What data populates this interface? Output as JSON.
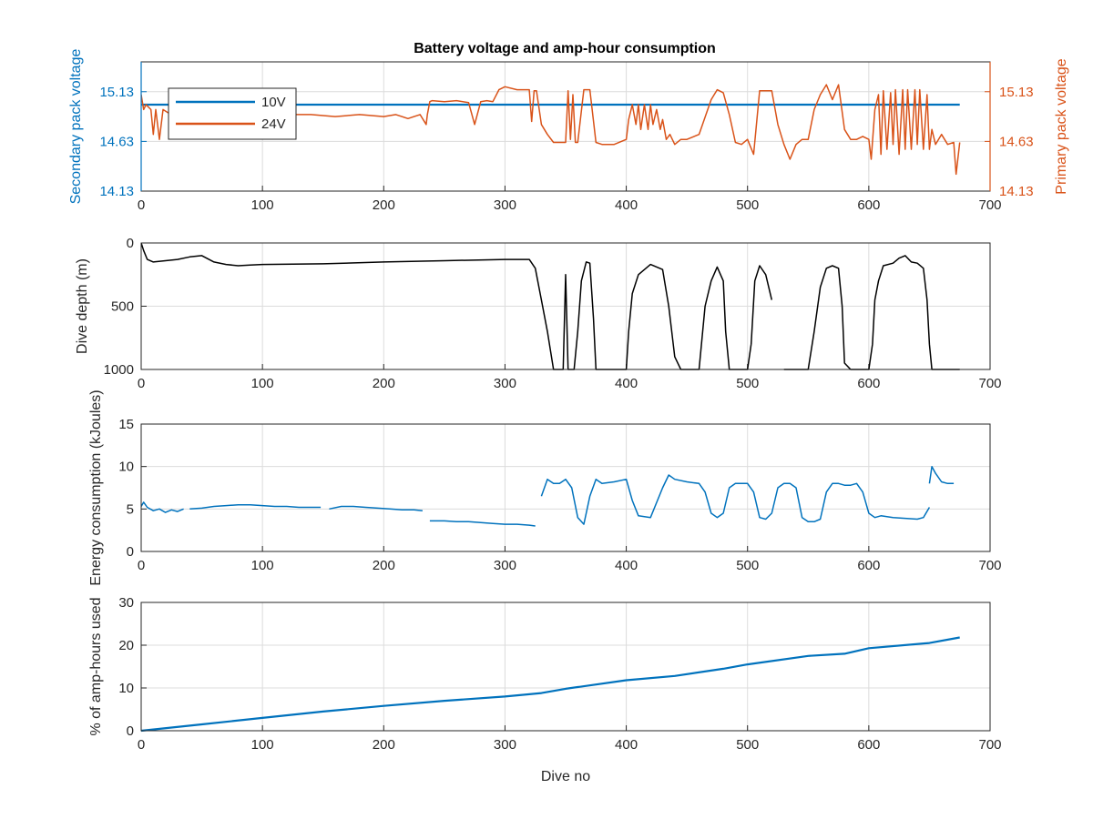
{
  "title": "Battery voltage and amp-hour consumption",
  "colors": {
    "blue": "#0072BD",
    "orange": "#D95319",
    "black": "#000000",
    "grid": "#dcdcdc"
  },
  "chart_data": [
    {
      "type": "line",
      "title": "Battery voltage and amp-hour consumption",
      "xlabel": "",
      "ylabel_left": "Secondary pack voltage",
      "ylabel_right": "Primary pack voltage",
      "xlim": [
        0,
        700
      ],
      "ylim": [
        14.13,
        15.43
      ],
      "xticks": [
        "0",
        "100",
        "200",
        "300",
        "400",
        "500",
        "600",
        "700"
      ],
      "yticks_left": [
        "14.13",
        "14.63",
        "15.13"
      ],
      "yticks_right": [
        "14.13",
        "14.63",
        "15.13"
      ],
      "legend": {
        "position": "top-left",
        "entries": [
          "10V",
          "24V"
        ]
      },
      "grid": true,
      "series": [
        {
          "name": "10V",
          "axis": "left",
          "color": "#0072BD",
          "x": [
            0,
            675
          ],
          "y": [
            15.0,
            15.0
          ]
        },
        {
          "name": "24V",
          "axis": "right",
          "color": "#D95319",
          "x": [
            0,
            2,
            4,
            8,
            10,
            12,
            15,
            18,
            22,
            25,
            30,
            40,
            50,
            60,
            80,
            100,
            120,
            140,
            160,
            180,
            200,
            210,
            220,
            230,
            235,
            236,
            238,
            240,
            250,
            260,
            270,
            275,
            280,
            285,
            290,
            295,
            300,
            310,
            320,
            322,
            324,
            326,
            330,
            335,
            340,
            345,
            350,
            352,
            354,
            356,
            358,
            360,
            365,
            370,
            375,
            380,
            390,
            400,
            402,
            405,
            408,
            410,
            412,
            415,
            418,
            420,
            422,
            425,
            428,
            430,
            433,
            436,
            440,
            445,
            450,
            460,
            470,
            475,
            480,
            485,
            490,
            495,
            500,
            505,
            510,
            515,
            520,
            525,
            530,
            535,
            540,
            545,
            550,
            555,
            560,
            565,
            570,
            575,
            580,
            585,
            590,
            595,
            600,
            602,
            605,
            608,
            610,
            612,
            615,
            618,
            620,
            622,
            625,
            628,
            630,
            632,
            635,
            638,
            640,
            642,
            645,
            648,
            650,
            652,
            655,
            660,
            665,
            670,
            672,
            675
          ],
          "y": [
            15.1,
            14.95,
            15.0,
            14.95,
            14.7,
            14.95,
            14.65,
            14.95,
            14.92,
            14.9,
            14.9,
            14.9,
            14.88,
            14.9,
            14.9,
            14.88,
            14.9,
            14.9,
            14.88,
            14.9,
            14.88,
            14.9,
            14.86,
            14.9,
            14.8,
            14.9,
            15.03,
            15.04,
            15.03,
            15.04,
            15.02,
            14.8,
            15.03,
            15.04,
            15.03,
            15.15,
            15.18,
            15.15,
            15.15,
            14.83,
            15.14,
            15.14,
            14.8,
            14.7,
            14.62,
            14.62,
            14.62,
            15.14,
            14.65,
            15.1,
            14.62,
            14.62,
            15.15,
            15.15,
            14.62,
            14.6,
            14.6,
            14.65,
            14.85,
            15.0,
            14.8,
            15.0,
            14.75,
            15.0,
            14.75,
            15.0,
            14.8,
            14.95,
            14.75,
            14.85,
            14.65,
            14.7,
            14.6,
            14.65,
            14.65,
            14.7,
            15.05,
            15.15,
            15.12,
            14.9,
            14.62,
            14.6,
            14.65,
            14.5,
            15.14,
            15.14,
            15.14,
            14.8,
            14.6,
            14.45,
            14.6,
            14.65,
            14.65,
            14.95,
            15.1,
            15.2,
            15.05,
            15.2,
            14.75,
            14.65,
            14.65,
            14.68,
            14.65,
            14.45,
            14.95,
            15.1,
            14.5,
            15.14,
            14.55,
            15.12,
            14.6,
            15.15,
            14.5,
            15.15,
            14.55,
            15.15,
            14.55,
            15.15,
            14.6,
            15.15,
            14.55,
            15.1,
            14.55,
            14.75,
            14.6,
            14.7,
            14.6,
            14.62,
            14.3,
            14.62
          ]
        }
      ]
    },
    {
      "type": "line",
      "xlabel": "",
      "ylabel": "Dive depth (m)",
      "xlim": [
        0,
        700
      ],
      "ylim": [
        0,
        1000
      ],
      "y_reversed": true,
      "xticks": [
        "0",
        "100",
        "200",
        "300",
        "400",
        "500",
        "600",
        "700"
      ],
      "yticks": [
        "0",
        "500",
        "1000"
      ],
      "grid": true,
      "series": [
        {
          "segments": [
            {
              "x": [
                0,
                2,
                5,
                10,
                20,
                30,
                40,
                50,
                60,
                70,
                80,
                90,
                100,
                150,
                200,
                250,
                300,
                320,
                325,
                330,
                335,
                340,
                342,
                348,
                350,
                352,
                355,
                357,
                360,
                363,
                367,
                370,
                373,
                375,
                380,
                390,
                400,
                402,
                405,
                410,
                420,
                430,
                435,
                440,
                445,
                450,
                455,
                460,
                465,
                470,
                475,
                480,
                482,
                485,
                490,
                500,
                503,
                506,
                510,
                515,
                520
              ],
              "y": [
                0,
                60,
                130,
                150,
                140,
                130,
                110,
                100,
                150,
                170,
                180,
                175,
                170,
                165,
                150,
                140,
                130,
                130,
                200,
                450,
                700,
                1000,
                1000,
                1000,
                250,
                1000,
                1000,
                1000,
                700,
                300,
                150,
                160,
                600,
                1000,
                1000,
                1000,
                1000,
                700,
                400,
                250,
                170,
                210,
                500,
                900,
                1000,
                1000,
                1000,
                1000,
                500,
                300,
                190,
                300,
                700,
                1000,
                1000,
                1000,
                800,
                300,
                180,
                250,
                450
              ]
            },
            {
              "x": [
                530,
                540,
                550,
                555,
                560,
                565,
                570,
                575,
                578,
                580,
                585,
                590,
                600,
                603,
                605,
                608,
                612,
                620,
                625,
                630,
                635,
                640,
                645,
                648,
                650,
                652,
                655,
                660,
                670,
                675
              ],
              "y": [
                1000,
                1000,
                1000,
                700,
                350,
                200,
                180,
                200,
                500,
                950,
                1000,
                1000,
                1000,
                800,
                450,
                300,
                180,
                160,
                120,
                100,
                150,
                160,
                200,
                450,
                800,
                1000,
                1000,
                1000,
                1000,
                1000
              ]
            }
          ]
        }
      ]
    },
    {
      "type": "line",
      "xlabel": "",
      "ylabel": "Energy consumption (kJoules)",
      "xlim": [
        0,
        700
      ],
      "ylim": [
        0,
        15
      ],
      "xticks": [
        "0",
        "100",
        "200",
        "300",
        "400",
        "500",
        "600",
        "700"
      ],
      "yticks": [
        "0",
        "5",
        "10",
        "15"
      ],
      "grid": true,
      "series": [
        {
          "segments": [
            {
              "x": [
                0,
                2,
                5,
                10,
                15,
                20,
                25,
                30,
                35
              ],
              "y": [
                5.3,
                5.8,
                5.2,
                4.8,
                5.0,
                4.6,
                4.9,
                4.7,
                5.0
              ]
            },
            {
              "x": [
                40,
                50,
                60,
                70,
                80,
                90,
                100,
                110,
                120,
                130,
                140,
                148
              ],
              "y": [
                5.0,
                5.1,
                5.3,
                5.4,
                5.5,
                5.5,
                5.4,
                5.3,
                5.3,
                5.2,
                5.2,
                5.2
              ]
            },
            {
              "x": [
                155,
                165,
                175,
                185,
                195,
                205,
                215,
                225,
                232
              ],
              "y": [
                5.0,
                5.3,
                5.3,
                5.2,
                5.1,
                5.0,
                4.9,
                4.9,
                4.8
              ]
            },
            {
              "x": [
                238,
                250,
                260,
                270,
                280,
                290,
                300,
                310,
                320,
                325
              ],
              "y": [
                3.6,
                3.6,
                3.5,
                3.5,
                3.4,
                3.3,
                3.2,
                3.2,
                3.1,
                3.0
              ]
            },
            {
              "x": [
                330,
                335,
                340,
                345,
                350,
                355,
                360,
                365,
                370,
                375,
                380,
                390,
                400,
                405,
                410,
                420,
                430,
                435,
                440,
                450,
                460,
                465,
                470,
                475,
                480,
                485,
                490,
                500,
                505,
                510,
                515,
                520,
                525,
                530,
                535,
                540,
                545,
                550,
                555,
                560,
                565,
                570,
                575,
                580,
                585,
                590,
                595,
                600,
                605,
                610,
                620,
                630,
                640,
                645,
                650
              ],
              "y": [
                6.5,
                8.5,
                8.0,
                8.0,
                8.5,
                7.5,
                4.0,
                3.2,
                6.5,
                8.5,
                8.0,
                8.2,
                8.5,
                6.0,
                4.2,
                4.0,
                7.5,
                9.0,
                8.5,
                8.2,
                8.0,
                7.0,
                4.5,
                4.0,
                4.5,
                7.5,
                8.0,
                8.0,
                7.0,
                4.0,
                3.8,
                4.5,
                7.5,
                8.0,
                8.0,
                7.5,
                4.0,
                3.5,
                3.5,
                3.8,
                7.0,
                8.0,
                8.0,
                7.8,
                7.8,
                8.0,
                7.0,
                4.5,
                4.0,
                4.2,
                4.0,
                3.9,
                3.8,
                4.0,
                5.2
              ]
            },
            {
              "x": [
                650,
                652,
                655,
                660,
                665,
                670
              ],
              "y": [
                8.0,
                10.0,
                9.2,
                8.2,
                8.0,
                8.0
              ]
            }
          ]
        }
      ]
    },
    {
      "type": "line",
      "xlabel": "Dive no",
      "ylabel": "% of amp-hours used",
      "xlim": [
        0,
        700
      ],
      "ylim": [
        0,
        30
      ],
      "xticks": [
        "0",
        "100",
        "200",
        "300",
        "400",
        "500",
        "600",
        "700"
      ],
      "yticks": [
        "0",
        "10",
        "20",
        "30"
      ],
      "grid": true,
      "series": [
        {
          "x": [
            0,
            50,
            100,
            150,
            200,
            250,
            300,
            330,
            350,
            400,
            440,
            480,
            500,
            550,
            580,
            600,
            650,
            675
          ],
          "y": [
            0,
            1.5,
            3.0,
            4.5,
            5.8,
            7.0,
            8.0,
            8.8,
            9.8,
            11.8,
            12.8,
            14.5,
            15.5,
            17.5,
            18.0,
            19.3,
            20.5,
            21.8
          ]
        }
      ]
    }
  ]
}
